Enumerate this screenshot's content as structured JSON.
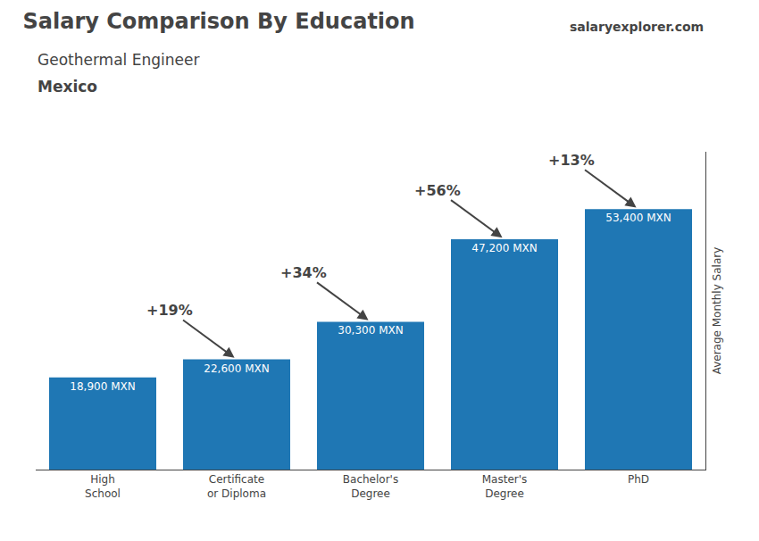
{
  "chart_data": {
    "type": "bar",
    "title": "Salary Comparison By Education",
    "subtitle": [
      "Geothermal Engineer",
      "Mexico"
    ],
    "source": "salaryexplorer.com",
    "ylabel": "Average Monthly Salary",
    "categories": [
      "High\nSchool",
      "Certificate\nor Diploma",
      "Bachelor's\nDegree",
      "Master's\nDegree",
      "PhD"
    ],
    "values": [
      18900,
      22600,
      30300,
      47200,
      53400
    ],
    "value_labels": [
      "18,900 MXN",
      "22,600 MXN",
      "30,300 MXN",
      "47,200 MXN",
      "53,400 MXN"
    ],
    "data_labels": true,
    "ylim": [
      0,
      65148
    ],
    "grid": false,
    "tick_labels": "x",
    "annotations": [
      {
        "text": "+19%",
        "from": 0,
        "to": 1
      },
      {
        "text": "+34%",
        "from": 1,
        "to": 2
      },
      {
        "text": "+56%",
        "from": 2,
        "to": 3
      },
      {
        "text": "+13%",
        "from": 3,
        "to": 4
      }
    ]
  }
}
